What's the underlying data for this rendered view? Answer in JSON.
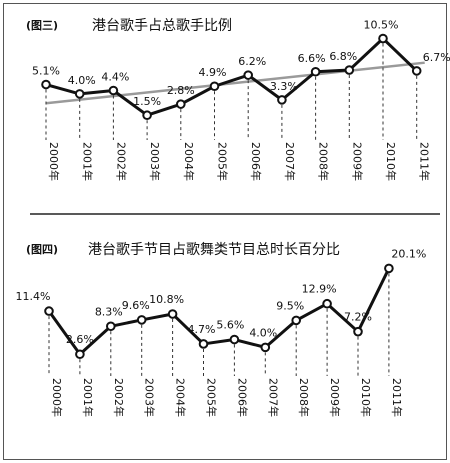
{
  "chart_data": [
    {
      "type": "line",
      "figure_label": "(图三)",
      "title": "港台歌手占总歌手比例",
      "categories": [
        "2000年",
        "2001年",
        "2002年",
        "2003年",
        "2004年",
        "2005年",
        "2006年",
        "2007年",
        "2008年",
        "2009年",
        "2010年",
        "2011年"
      ],
      "series": [
        {
          "values": [
            5.1,
            4.0,
            4.4,
            1.5,
            2.8,
            4.9,
            6.2,
            3.3,
            6.6,
            6.8,
            10.5,
            6.7
          ],
          "labels": [
            "5.1%",
            "4.0%",
            "4.4%",
            "1.5%",
            "2.8%",
            "4.9%",
            "6.2%",
            "3.3%",
            "6.6%",
            "6.8%",
            "10.5%",
            "6.7%"
          ]
        }
      ],
      "trendline": {
        "shown": true,
        "color": "#9a9a9a"
      },
      "ylim": [
        0,
        11.5
      ],
      "grid": false,
      "colors": {
        "line": "#111111",
        "marker_fill": "#ffffff"
      }
    },
    {
      "type": "line",
      "figure_label": "(图四)",
      "title": "港台歌手节目占歌舞类节目总时长百分比",
      "categories": [
        "2000年",
        "2001年",
        "2002年",
        "2003年",
        "2004年",
        "2005年",
        "2006年",
        "2007年",
        "2008年",
        "2009年",
        "2010年",
        "2011年"
      ],
      "series": [
        {
          "values": [
            11.4,
            2.6,
            8.3,
            9.6,
            10.8,
            4.7,
            5.6,
            4.0,
            9.5,
            12.9,
            7.2,
            20.1
          ],
          "labels": [
            "11.4%",
            "2.6%",
            "8.3%",
            "9.6%",
            "10.8%",
            "4.7%",
            "5.6%",
            "4.0%",
            "9.5%",
            "12.9%",
            "7.2%",
            "20.1%"
          ]
        }
      ],
      "ylim": [
        0,
        21
      ],
      "grid": false,
      "colors": {
        "line": "#111111",
        "marker_fill": "#ffffff"
      }
    }
  ]
}
